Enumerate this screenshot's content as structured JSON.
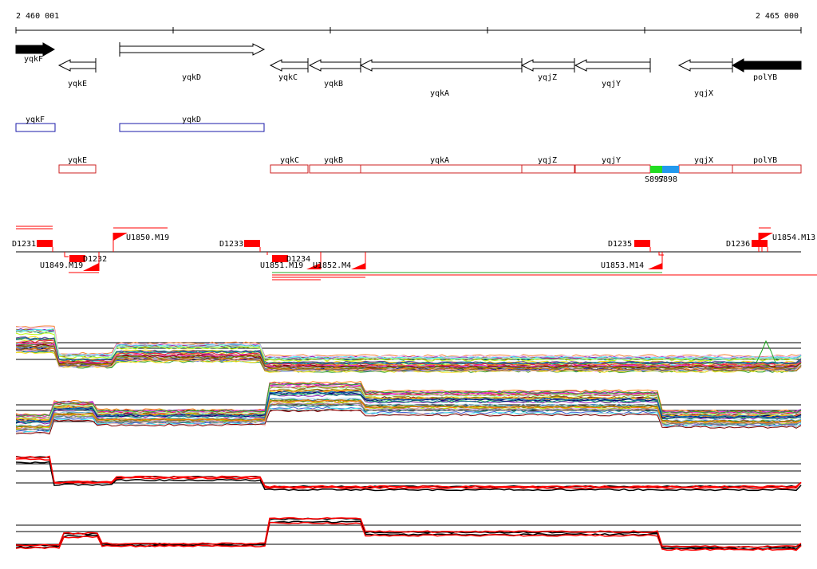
{
  "ruler": {
    "start_label": "2 460 001",
    "end_label": "2 465 000"
  },
  "colors": {
    "gene_outline": "#000000",
    "gene_filled": "#000000",
    "cds_blue": "#1a1aa8",
    "cds_red": "#cc2222",
    "feature_red": "#ff0000",
    "segment_green": "#22dd22",
    "segment_blue": "#2299ee"
  },
  "genes": [
    {
      "name": "yqkF",
      "strand": "+",
      "filled": true
    },
    {
      "name": "yqkE",
      "strand": "-",
      "filled": false
    },
    {
      "name": "yqkD",
      "strand": "+",
      "filled": false
    },
    {
      "name": "yqkC",
      "strand": "-",
      "filled": false
    },
    {
      "name": "yqkB",
      "strand": "-",
      "filled": false
    },
    {
      "name": "yqkA",
      "strand": "-",
      "filled": false
    },
    {
      "name": "yqjZ",
      "strand": "-",
      "filled": false
    },
    {
      "name": "yqjY",
      "strand": "-",
      "filled": false
    },
    {
      "name": "yqjX",
      "strand": "-",
      "filled": false
    },
    {
      "name": "polYB",
      "strand": "-",
      "filled": true
    }
  ],
  "cds_blue": [
    {
      "name": "yqkF"
    },
    {
      "name": "yqkD"
    }
  ],
  "cds_red": [
    {
      "name": "yqkE"
    },
    {
      "name": "yqkC"
    },
    {
      "name": "yqkB"
    },
    {
      "name": "yqkA"
    },
    {
      "name": "yqjZ"
    },
    {
      "name": "yqjY"
    },
    {
      "name": "yqjX"
    },
    {
      "name": "polYB"
    }
  ],
  "segments": [
    {
      "label": "S897"
    },
    {
      "label": "S898"
    }
  ],
  "downstream_labels": [
    "D1231",
    "D1232",
    "D1233",
    "D1234",
    "D1235",
    "D1236"
  ],
  "upstream_labels": [
    "U1849.M19",
    "U1850.M19",
    "U1851.M19",
    "U1852.M4",
    "U1853.M14",
    "U1854.M13"
  ]
}
